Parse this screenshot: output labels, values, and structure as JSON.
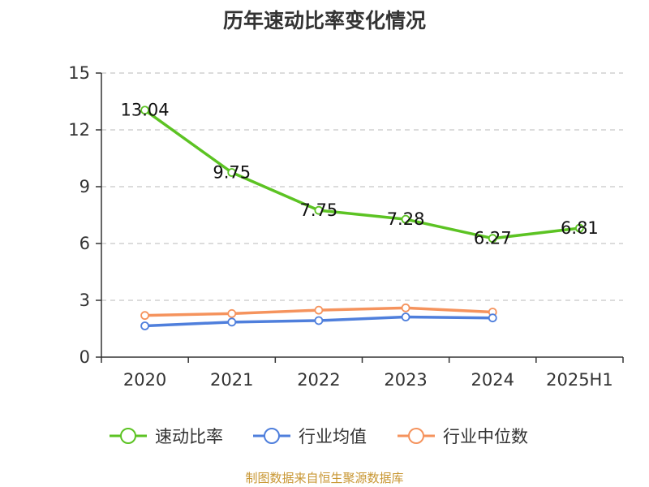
{
  "chart_data": {
    "type": "line",
    "title": "历年速动比率变化情况",
    "categories": [
      "2020",
      "2021",
      "2022",
      "2023",
      "2024",
      "2025H1"
    ],
    "ylim": [
      0,
      15
    ],
    "yticks": [
      "0",
      "3",
      "6",
      "9",
      "12",
      "15"
    ],
    "grid": true,
    "legend_position": "bottom",
    "series": [
      {
        "name": "速动比率",
        "color": "#5cc323",
        "values": [
          13.04,
          9.75,
          7.75,
          7.28,
          6.27,
          6.81
        ],
        "labels": [
          "13.04",
          "9.75",
          "7.75",
          "7.28",
          "6.27",
          "6.81"
        ]
      },
      {
        "name": "行业均值",
        "color": "#4f7fdc",
        "values": [
          1.65,
          1.85,
          1.93,
          2.12,
          2.07,
          null
        ]
      },
      {
        "name": "行业中位数",
        "color": "#f5935d",
        "values": [
          2.2,
          2.3,
          2.48,
          2.6,
          2.38,
          null
        ]
      }
    ]
  },
  "footer": {
    "text": "制图数据来自恒生聚源数据库"
  }
}
